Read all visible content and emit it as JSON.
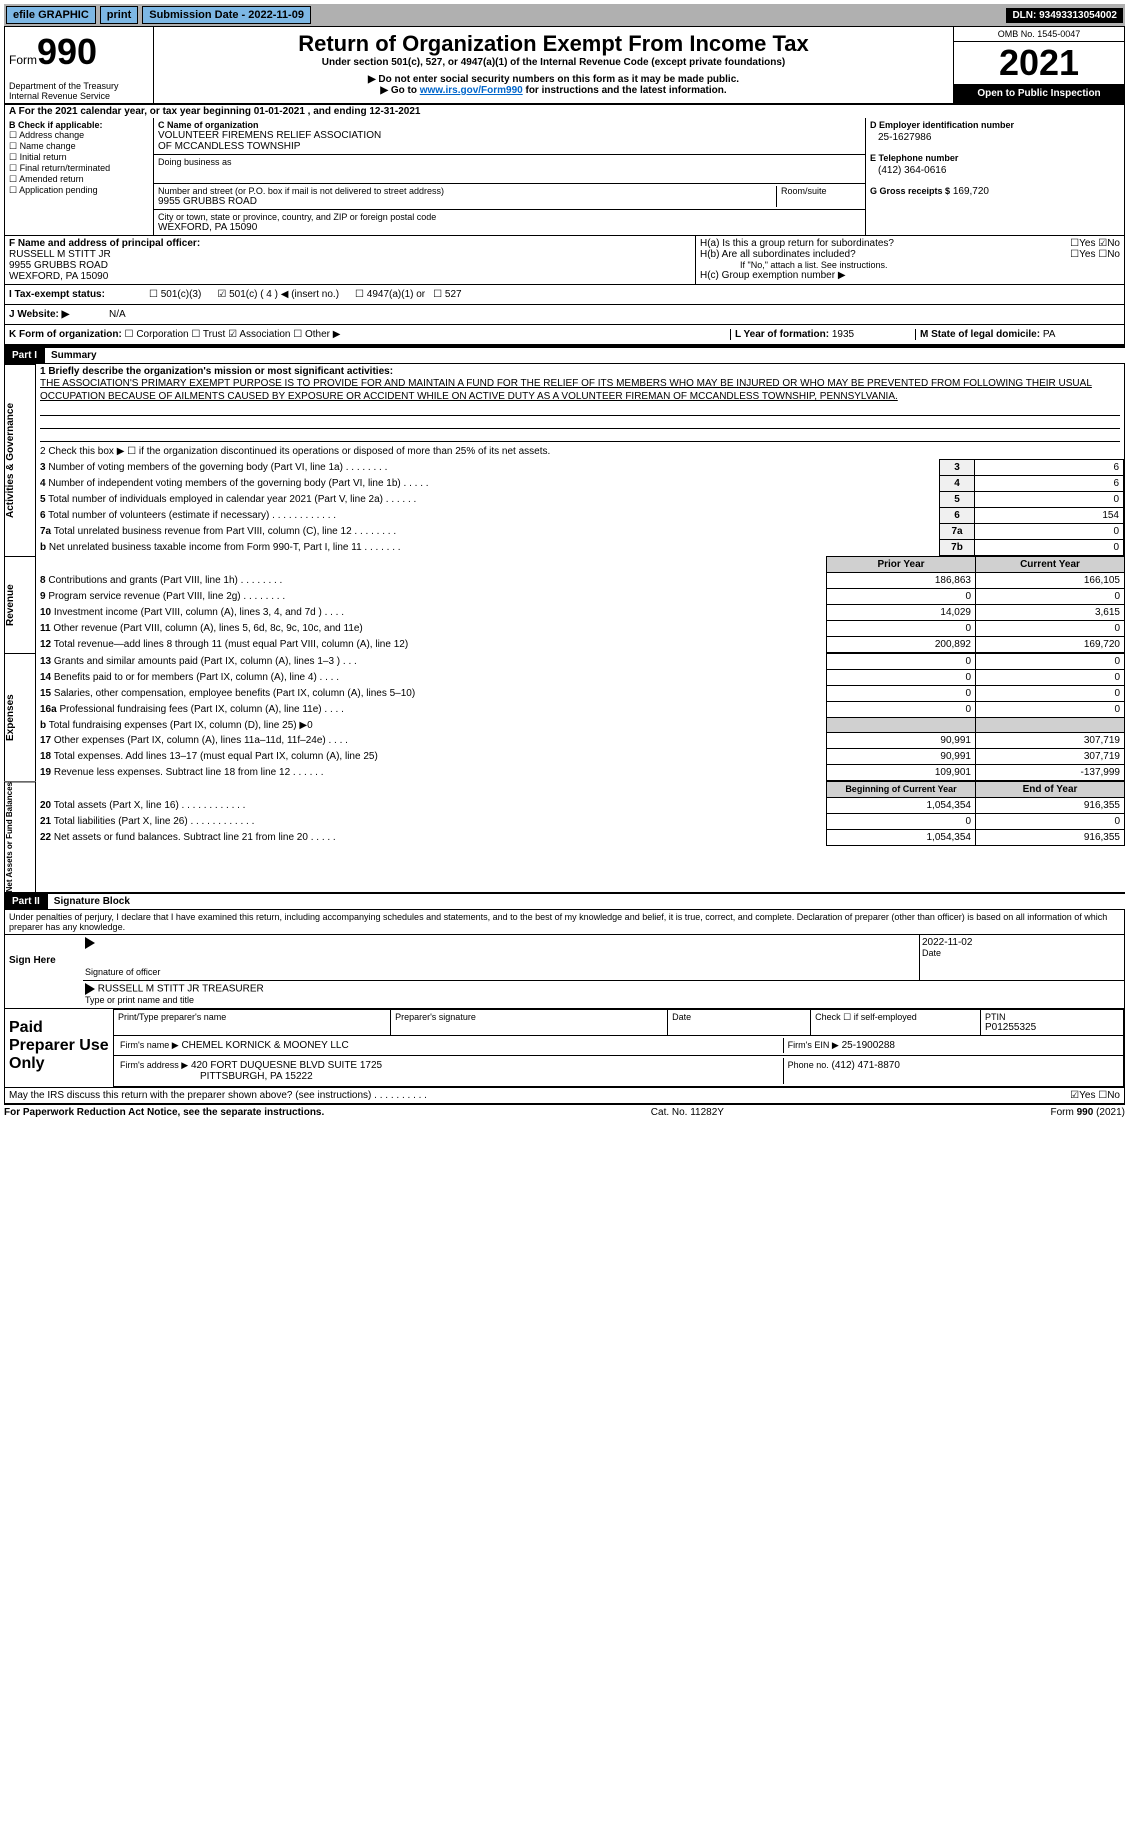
{
  "topbar": {
    "efile": "efile GRAPHIC",
    "print": "print",
    "submission_label": "Submission Date - ",
    "submission_date": "2022-11-09",
    "dln_label": "DLN: ",
    "dln": "93493313054002"
  },
  "header": {
    "form_word": "Form",
    "form_number": "990",
    "title": "Return of Organization Exempt From Income Tax",
    "subtitle": "Under section 501(c), 527, or 4947(a)(1) of the Internal Revenue Code (except private foundations)",
    "warn": "▶ Do not enter social security numbers on this form as it may be made public.",
    "goto_pre": "▶ Go to ",
    "goto_link": "www.irs.gov/Form990",
    "goto_post": " for instructions and the latest information.",
    "dept1": "Department of the Treasury",
    "dept2": "Internal Revenue Service",
    "omb": "OMB No. 1545-0047",
    "year": "2021",
    "open": "Open to Public Inspection"
  },
  "period": {
    "line_a_pre": "A For the 2021 calendar year, or tax year beginning ",
    "begin": "01-01-2021",
    "mid": " , and ending ",
    "end": "12-31-2021"
  },
  "block_b": {
    "title": "B Check if applicable:",
    "items": [
      "Address change",
      "Name change",
      "Initial return",
      "Final return/terminated",
      "Amended return",
      "Application pending"
    ]
  },
  "block_c": {
    "name_label": "C Name of organization",
    "name1": "VOLUNTEER FIREMENS RELIEF ASSOCIATION",
    "name2": "OF MCCANDLESS TOWNSHIP",
    "dba_label": "Doing business as",
    "dba": "",
    "addr_label": "Number and street (or P.O. box if mail is not delivered to street address)",
    "room_label": "Room/suite",
    "addr": "9955 GRUBBS ROAD",
    "city_label": "City or town, state or province, country, and ZIP or foreign postal code",
    "city": "WEXFORD, PA  15090"
  },
  "block_d": {
    "label": "D Employer identification number",
    "value": "25-1627986"
  },
  "block_e": {
    "label": "E Telephone number",
    "value": "(412) 364-0616"
  },
  "block_g": {
    "label": "G Gross receipts $",
    "value": "169,720"
  },
  "block_f": {
    "label": "F Name and address of principal officer:",
    "name": "RUSSELL M STITT JR",
    "addr": "9955 GRUBBS ROAD",
    "city": "WEXFORD, PA  15090"
  },
  "block_h": {
    "a_label": "H(a)  Is this a group return for subordinates?",
    "b_label": "H(b)  Are all subordinates included?",
    "b_note": "If \"No,\" attach a list. See instructions.",
    "c_label": "H(c)  Group exemption number ▶",
    "yes": "Yes",
    "no": "No"
  },
  "status": {
    "i_label": "I   Tax-exempt status:",
    "opt1": "501(c)(3)",
    "opt2": "501(c) ( 4 ) ◀ (insert no.)",
    "opt3": "4947(a)(1) or",
    "opt4": "527"
  },
  "website": {
    "label": "J   Website: ▶",
    "value": "N/A"
  },
  "block_k": {
    "label": "K Form of organization:",
    "o1": "Corporation",
    "o2": "Trust",
    "o3": "Association",
    "o4": "Other ▶"
  },
  "block_l": {
    "label": "L Year of formation: ",
    "value": "1935"
  },
  "block_m": {
    "label": "M State of legal domicile: ",
    "value": "PA"
  },
  "part1": {
    "hdr": "Part I",
    "title": "Summary"
  },
  "mission": {
    "label": "1   Briefly describe the organization's mission or most significant activities:",
    "text": "THE ASSOCIATION'S PRIMARY EXEMPT PURPOSE IS TO PROVIDE FOR AND MAINTAIN A FUND FOR THE RELIEF OF ITS MEMBERS WHO MAY BE INJURED OR WHO MAY BE PREVENTED FROM FOLLOWING THEIR USUAL OCCUPATION BECAUSE OF AILMENTS CAUSED BY EXPOSURE OR ACCIDENT WHILE ON ACTIVE DUTY AS A VOLUNTEER FIREMAN OF MCCANDLESS TOWNSHIP, PENNSYLVANIA."
  },
  "gov": {
    "line2": "2   Check this box ▶ ☐  if the organization discontinued its operations or disposed of more than 25% of its net assets.",
    "rows": [
      {
        "n": "3",
        "t": "Number of voting members of the governing body (Part VI, line 1a)   .    .    .    .    .    .    .    .",
        "box": "3",
        "v": "6"
      },
      {
        "n": "4",
        "t": "Number of independent voting members of the governing body (Part VI, line 1b)   .    .    .    .    .",
        "box": "4",
        "v": "6"
      },
      {
        "n": "5",
        "t": "Total number of individuals employed in calendar year 2021 (Part V, line 2a)   .    .    .    .    .    .",
        "box": "5",
        "v": "0"
      },
      {
        "n": "6",
        "t": "Total number of volunteers (estimate if necessary)    .    .    .    .    .    .    .    .    .    .    .    .",
        "box": "6",
        "v": "154"
      },
      {
        "n": "7a",
        "t": "Total unrelated business revenue from Part VIII, column (C), line 12   .    .    .    .    .    .    .    .",
        "box": "7a",
        "v": "0"
      },
      {
        "n": "b",
        "t": "Net unrelated business taxable income from Form 990-T, Part I, line 11    .    .    .    .    .    .    .",
        "box": "7b",
        "v": "0"
      }
    ]
  },
  "fin_hdr": {
    "prior": "Prior Year",
    "current": "Current Year"
  },
  "revenue": [
    {
      "n": "8",
      "t": "Contributions and grants (Part VIII, line 1h)    .    .    .    .    .    .    .    .",
      "p": "186,863",
      "c": "166,105"
    },
    {
      "n": "9",
      "t": "Program service revenue (Part VIII, line 2g)    .    .    .    .    .    .    .    .",
      "p": "0",
      "c": "0"
    },
    {
      "n": "10",
      "t": "Investment income (Part VIII, column (A), lines 3, 4, and 7d )   .    .    .    .",
      "p": "14,029",
      "c": "3,615"
    },
    {
      "n": "11",
      "t": "Other revenue (Part VIII, column (A), lines 5, 6d, 8c, 9c, 10c, and 11e)",
      "p": "0",
      "c": "0"
    },
    {
      "n": "12",
      "t": "Total revenue—add lines 8 through 11 (must equal Part VIII, column (A), line 12)",
      "p": "200,892",
      "c": "169,720"
    }
  ],
  "expenses": [
    {
      "n": "13",
      "t": "Grants and similar amounts paid (Part IX, column (A), lines 1–3 )   .    .    .",
      "p": "0",
      "c": "0"
    },
    {
      "n": "14",
      "t": "Benefits paid to or for members (Part IX, column (A), line 4)   .    .    .    .",
      "p": "0",
      "c": "0"
    },
    {
      "n": "15",
      "t": "Salaries, other compensation, employee benefits (Part IX, column (A), lines 5–10)",
      "p": "0",
      "c": "0"
    },
    {
      "n": "16a",
      "t": "Professional fundraising fees (Part IX, column (A), line 11e)   .    .    .    .",
      "p": "0",
      "c": "0"
    },
    {
      "n": "b",
      "t": "Total fundraising expenses (Part IX, column (D), line 25) ▶0",
      "p": "",
      "c": ""
    },
    {
      "n": "17",
      "t": "Other expenses (Part IX, column (A), lines 11a–11d, 11f–24e)   .    .    .    .",
      "p": "90,991",
      "c": "307,719"
    },
    {
      "n": "18",
      "t": "Total expenses. Add lines 13–17 (must equal Part IX, column (A), line 25)",
      "p": "90,991",
      "c": "307,719"
    },
    {
      "n": "19",
      "t": "Revenue less expenses. Subtract line 18 from line 12   .    .    .    .    .    .",
      "p": "109,901",
      "c": "-137,999"
    }
  ],
  "net_hdr": {
    "beg": "Beginning of Current Year",
    "end": "End of Year"
  },
  "net": [
    {
      "n": "20",
      "t": "Total assets (Part X, line 16)   .    .    .    .    .    .    .    .    .    .    .    .",
      "p": "1,054,354",
      "c": "916,355"
    },
    {
      "n": "21",
      "t": "Total liabilities (Part X, line 26)   .    .    .    .    .    .    .    .    .    .    .    .",
      "p": "0",
      "c": "0"
    },
    {
      "n": "22",
      "t": "Net assets or fund balances. Subtract line 21 from line 20   .    .    .    .    .",
      "p": "1,054,354",
      "c": "916,355"
    }
  ],
  "part2": {
    "hdr": "Part II",
    "title": "Signature Block",
    "penalties": "Under penalties of perjury, I declare that I have examined this return, including accompanying schedules and statements, and to the best of my knowledge and belief, it is true, correct, and complete. Declaration of preparer (other than officer) is based on all information of which preparer has any knowledge."
  },
  "sign": {
    "here": "Sign Here",
    "sig_label": "Signature of officer",
    "date": "2022-11-02",
    "date_label": "Date",
    "name": "RUSSELL M STITT JR TREASURER",
    "name_label": "Type or print name and title"
  },
  "paid": {
    "title": "Paid Preparer Use Only",
    "col1": "Print/Type preparer's name",
    "col2": "Preparer's signature",
    "col3": "Date",
    "col4": "Check ☐ if self-employed",
    "ptin_label": "PTIN",
    "ptin": "P01255325",
    "firm_label": "Firm's name   ▶",
    "firm": "CHEMEL KORNICK & MOONEY LLC",
    "ein_label": "Firm's EIN ▶",
    "ein": "25-1900288",
    "addr_label": "Firm's address ▶",
    "addr1": "420 FORT DUQUESNE BLVD SUITE 1725",
    "addr2": "PITTSBURGH, PA  15222",
    "phone_label": "Phone no.",
    "phone": "(412) 471-8870"
  },
  "discuss": {
    "q": "May the IRS discuss this return with the preparer shown above? (see instructions)   .    .    .    .    .    .    .    .    .    .",
    "yes": "Yes",
    "no": "No"
  },
  "footer": {
    "left": "For Paperwork Reduction Act Notice, see the separate instructions.",
    "mid": "Cat. No. 11282Y",
    "right": "Form 990 (2021)"
  },
  "side_labels": {
    "gov": "Activities & Governance",
    "rev": "Revenue",
    "exp": "Expenses",
    "net": "Net Assets or Fund Balances"
  }
}
